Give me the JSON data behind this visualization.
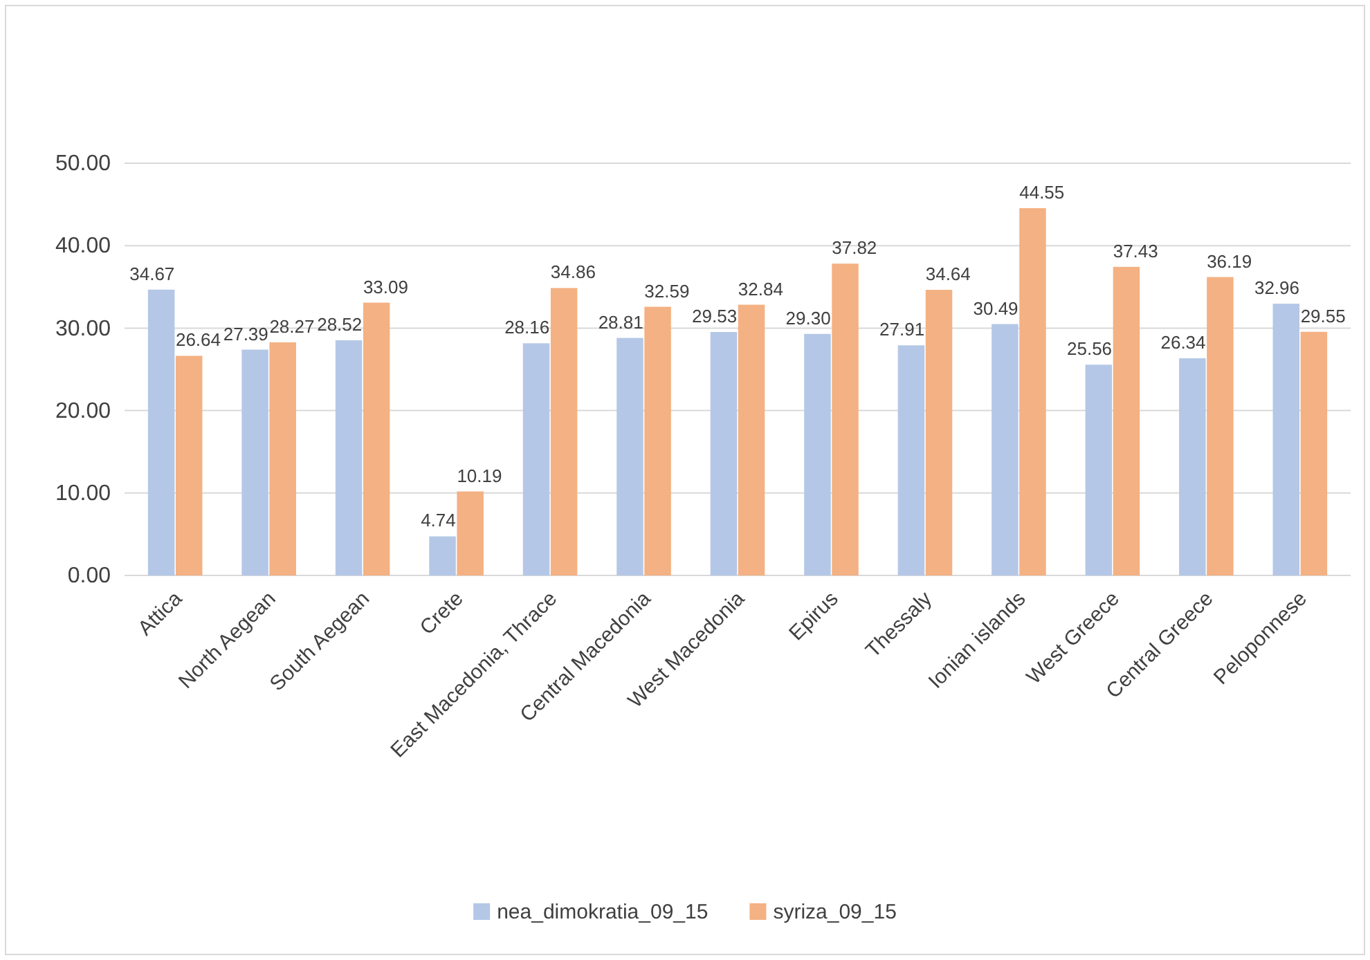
{
  "chart_data": {
    "type": "bar",
    "categories": [
      "Attica",
      "North Aegean",
      "South Aegean",
      "Crete",
      "East Macedonia, Thrace",
      "Central Macedonia",
      "West Macedonia",
      "Epirus",
      "Thessaly",
      "Ionian islands",
      "West Greece",
      "Central Greece",
      "Peloponnese"
    ],
    "series": [
      {
        "name": "nea_dimokratia_09_15",
        "color": "#b4c7e7",
        "values": [
          34.67,
          27.39,
          28.52,
          4.74,
          28.16,
          28.81,
          29.53,
          29.3,
          27.91,
          30.49,
          25.56,
          26.34,
          32.96
        ],
        "value_labels": [
          "34.67",
          "27.39",
          "28.52",
          "4.74",
          "28.16",
          "28.81",
          "29.53",
          "29.30",
          "27.91",
          "30.49",
          "25.56",
          "26.34",
          "32.96"
        ]
      },
      {
        "name": "syriza_09_15",
        "color": "#f4b183",
        "values": [
          26.64,
          28.27,
          33.09,
          10.19,
          34.86,
          32.59,
          32.84,
          37.82,
          34.64,
          44.55,
          37.43,
          36.19,
          29.55
        ],
        "value_labels": [
          "26.64",
          "28.27",
          "33.09",
          "10.19",
          "34.86",
          "32.59",
          "32.84",
          "37.82",
          "34.64",
          "44.55",
          "37.43",
          "36.19",
          "29.55"
        ]
      }
    ],
    "ylim": [
      0,
      50
    ],
    "yticks": [
      {
        "value": 0,
        "label": "0.00"
      },
      {
        "value": 10,
        "label": "10.00"
      },
      {
        "value": 20,
        "label": "20.00"
      },
      {
        "value": 30,
        "label": "30.00"
      },
      {
        "value": 40,
        "label": "40.00"
      },
      {
        "value": 50,
        "label": "50.00"
      }
    ],
    "grid": "y",
    "legend": "bottom"
  }
}
